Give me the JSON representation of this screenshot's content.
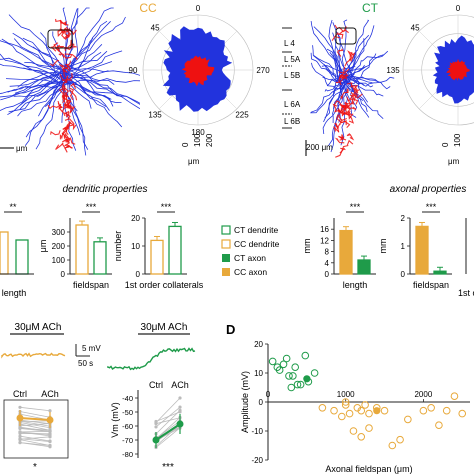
{
  "panel_top": {
    "cc_label": "CC",
    "ct_label": "CT",
    "polar_angles": [
      "0",
      "45",
      "90",
      "135",
      "180",
      "225",
      "270"
    ],
    "polar_radii": [
      "0",
      "100",
      "200"
    ],
    "polar_angles_ct": [
      "0",
      "45",
      "135"
    ],
    "polar_radii_ct": [
      "0",
      "100"
    ],
    "polar_unit": "μm",
    "cc_scale": "μm",
    "ct_scale": "200 μm",
    "layers": [
      "L 4",
      "L 5A",
      "L 5B",
      "L 6A",
      "L 6B"
    ],
    "colors": {
      "cc": "#e8a93b",
      "ct": "#1f9b4a",
      "dendrite": "#2233dd",
      "axon": "#ee1111"
    }
  },
  "dendritic": {
    "title": "dendritic properties",
    "ylabel_fieldspan": "μm",
    "ylabel_number": "number",
    "xlabels": [
      "length",
      "fieldspan",
      "1st order collaterals"
    ],
    "sig": [
      "**",
      "***",
      "***"
    ]
  },
  "legend": {
    "items": [
      "CT dendrite",
      "CC dendrite",
      "CT axon",
      "CC axon"
    ]
  },
  "axonal": {
    "title": "axonal properties",
    "ylabel_length": "mm",
    "ylabel_fieldspan": "mm",
    "xlabels": [
      "length",
      "fieldspan",
      "1st o"
    ],
    "sig": [
      "***",
      "***"
    ]
  },
  "chart_data": [
    {
      "type": "bar",
      "title": "",
      "xlabel": "fieldspan",
      "ylabel": "μm",
      "categories": [
        "CC dendrite",
        "CT dendrite"
      ],
      "values": [
        350,
        230
      ],
      "ylim": [
        0,
        400
      ],
      "yticks": [
        "0",
        "50",
        "100",
        "150",
        "200",
        "250",
        "300",
        "350"
      ]
    },
    {
      "type": "bar",
      "title": "",
      "xlabel": "1st order collaterals",
      "ylabel": "number",
      "categories": [
        "CC dendrite",
        "CT dendrite"
      ],
      "values": [
        12,
        17
      ],
      "ylim": [
        0,
        20
      ],
      "yticks": [
        "0",
        "5",
        "10",
        "15",
        "20"
      ]
    },
    {
      "type": "bar",
      "title": "",
      "xlabel": "length",
      "ylabel": "mm",
      "categories": [
        "CC axon",
        "CT axon"
      ],
      "values": [
        15.5,
        5
      ],
      "ylim": [
        0,
        20
      ],
      "yticks": [
        "0",
        "4",
        "8",
        "12",
        "16",
        "20"
      ]
    },
    {
      "type": "bar",
      "title": "",
      "xlabel": "fieldspan",
      "ylabel": "mm",
      "categories": [
        "CC axon",
        "CT axon"
      ],
      "values": [
        1.7,
        0.1
      ],
      "ylim": [
        0,
        2
      ],
      "yticks": [
        "0",
        "1",
        "2"
      ]
    },
    {
      "type": "scatter",
      "title": "",
      "xlabel": "Axonal fieldspan (μm)",
      "ylabel": "Amplitude (mV)",
      "xticks": [
        "0",
        "1000",
        "2000"
      ],
      "yticks": [
        "-20",
        "-10",
        "0",
        "10",
        "20"
      ],
      "xlim": [
        0,
        2600
      ],
      "ylim": [
        -20,
        20
      ],
      "series": [
        {
          "name": "CT",
          "points": [
            [
              60,
              14
            ],
            [
              120,
              12
            ],
            [
              150,
              11
            ],
            [
              200,
              13
            ],
            [
              240,
              15
            ],
            [
              270,
              9
            ],
            [
              320,
              9
            ],
            [
              350,
              12
            ],
            [
              420,
              6
            ],
            [
              520,
              7
            ],
            [
              600,
              10
            ],
            [
              480,
              16
            ],
            [
              300,
              5
            ],
            [
              380,
              6
            ]
          ],
          "mean": [
            500,
            8
          ]
        },
        {
          "name": "CC",
          "points": [
            [
              700,
              -2
            ],
            [
              850,
              -3
            ],
            [
              950,
              -5
            ],
            [
              1000,
              -1
            ],
            [
              1150,
              -2
            ],
            [
              1200,
              -3
            ],
            [
              1300,
              -4
            ],
            [
              1400,
              -2
            ],
            [
              1500,
              -3
            ],
            [
              1100,
              -10
            ],
            [
              1200,
              -12
            ],
            [
              1300,
              -9
            ],
            [
              1700,
              -13
            ],
            [
              2000,
              -3
            ],
            [
              2100,
              -2
            ],
            [
              2300,
              -3
            ],
            [
              2500,
              -4
            ],
            [
              2400,
              2
            ],
            [
              1000,
              0
            ],
            [
              1600,
              -15
            ],
            [
              1800,
              -6
            ],
            [
              2200,
              -8
            ],
            [
              1050,
              -4
            ],
            [
              1250,
              -1
            ]
          ],
          "mean": [
            1400,
            -3
          ]
        }
      ]
    }
  ],
  "traces": {
    "cc_label": "30μM ACh",
    "ct_label": "30μM ACh",
    "scale_mv": "5 mV",
    "scale_s": "50 s"
  },
  "paired": {
    "cc_xlabels": [
      "Ctrl",
      "ACh"
    ],
    "ct_xlabels": [
      "Ctrl",
      "ACh"
    ],
    "ct_ylabel": "Vm (mV)",
    "ct_yticks": [
      "-40",
      "-50",
      "-60",
      "-70",
      "-80"
    ],
    "cc_sig": "*",
    "ct_sig": "***"
  },
  "panel_d": {
    "label": "D"
  }
}
